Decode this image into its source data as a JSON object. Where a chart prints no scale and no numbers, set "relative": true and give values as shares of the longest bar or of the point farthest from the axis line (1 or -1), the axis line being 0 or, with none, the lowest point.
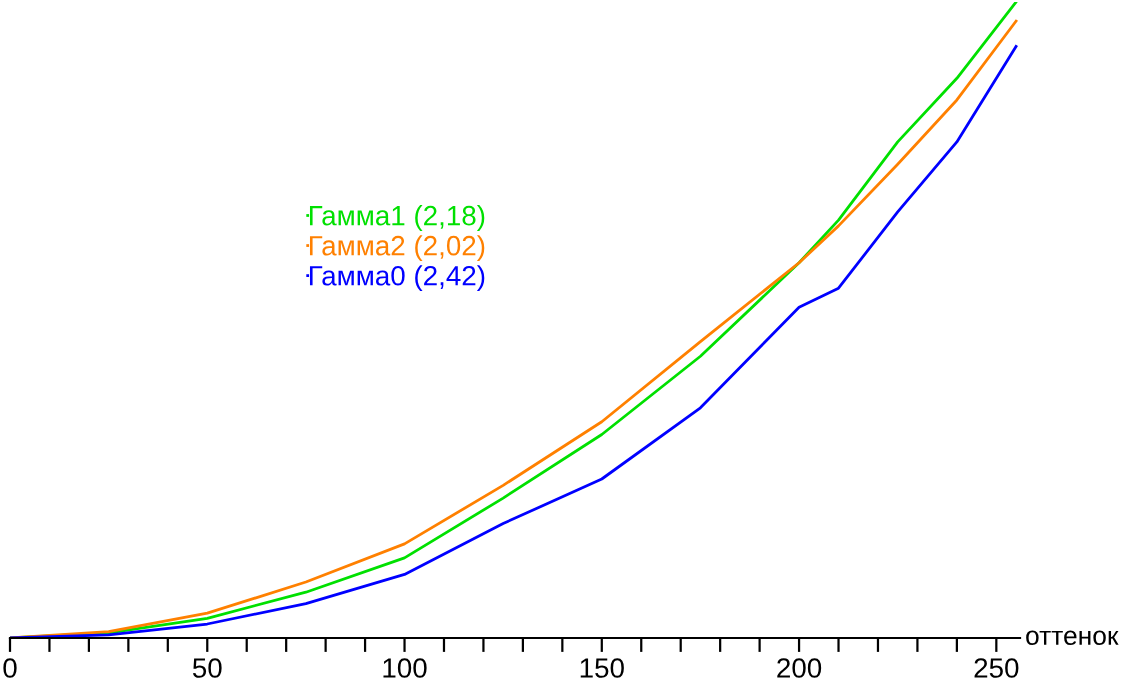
{
  "chart_data": {
    "type": "line",
    "xlabel": "оттенок",
    "relative": true,
    "legend": "top left",
    "marker": "none",
    "line_style": "solid",
    "grid": false,
    "xlim": [
      0,
      256
    ],
    "xticks": [
      0,
      {
        "value": 10,
        "label": null
      },
      {
        "value": 20,
        "label": null
      },
      {
        "value": 30,
        "label": null
      },
      {
        "value": 40,
        "label": null
      },
      50,
      {
        "value": 60,
        "label": null
      },
      {
        "value": 70,
        "label": null
      },
      {
        "value": 80,
        "label": null
      },
      {
        "value": 90,
        "label": null
      },
      100,
      {
        "value": 110,
        "label": null
      },
      {
        "value": 120,
        "label": null
      },
      {
        "value": 130,
        "label": null
      },
      {
        "value": 140,
        "label": null
      },
      150,
      {
        "value": 160,
        "label": null
      },
      {
        "value": 170,
        "label": null
      },
      {
        "value": 180,
        "label": null
      },
      {
        "value": 190,
        "label": null
      },
      200,
      {
        "value": 210,
        "label": null
      },
      {
        "value": 220,
        "label": null
      },
      {
        "value": 230,
        "label": null
      },
      {
        "value": 240,
        "label": null
      },
      250
    ],
    "x": [
      0,
      25,
      50,
      75,
      100,
      125,
      150,
      175,
      200,
      210,
      225,
      240,
      255
    ],
    "series": [
      {
        "name": "Гамма1 (2,18)",
        "color": "#00e000",
        "values": [
          0,
          0.008,
          0.031,
          0.072,
          0.126,
          0.22,
          0.32,
          0.443,
          0.59,
          0.657,
          0.78,
          0.88,
          1.0
        ]
      },
      {
        "name": "Гамма2 (2,02)",
        "color": "#ff8000",
        "values": [
          0,
          0.01,
          0.039,
          0.088,
          0.148,
          0.24,
          0.34,
          0.466,
          0.59,
          0.648,
          0.745,
          0.846,
          0.97
        ]
      },
      {
        "name": "Гамма0 (2,42)",
        "color": "#0000ff",
        "values": [
          0,
          0.005,
          0.022,
          0.054,
          0.1,
          0.18,
          0.25,
          0.362,
          0.52,
          0.55,
          0.67,
          0.78,
          0.93
        ]
      }
    ]
  }
}
